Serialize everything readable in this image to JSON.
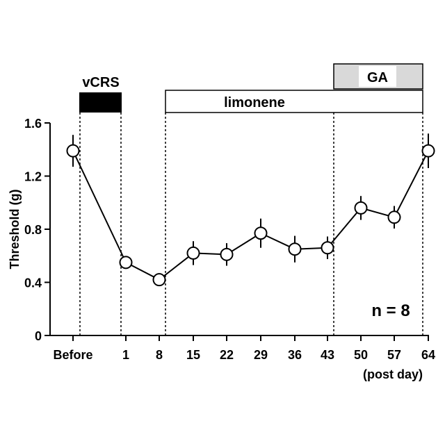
{
  "chart_data": {
    "type": "line",
    "title": "",
    "xlabel": "(post day)",
    "ylabel": "Threshold (g)",
    "ylim": [
      0,
      1.6
    ],
    "yticks": [
      "0",
      "0.4",
      "0.8",
      "1.2",
      "1.6"
    ],
    "categories": [
      "Before",
      "1",
      "8",
      "15",
      "22",
      "29",
      "36",
      "43",
      "50",
      "57",
      "64"
    ],
    "series": [
      {
        "name": "Threshold",
        "values": [
          1.39,
          0.55,
          0.42,
          0.62,
          0.61,
          0.77,
          0.65,
          0.66,
          0.96,
          0.89,
          1.39
        ],
        "errors": [
          0.12,
          0.03,
          0.03,
          0.09,
          0.085,
          0.11,
          0.1,
          0.085,
          0.09,
          0.085,
          0.13
        ]
      }
    ],
    "treatments": [
      {
        "label": "vCRS",
        "style": "filled"
      },
      {
        "label": "limonene",
        "style": "open"
      },
      {
        "label": "GA",
        "style": "gray"
      }
    ],
    "annotation": "n = 8",
    "grid": false,
    "colors": {
      "line": "#000000",
      "marker_fill": "#ffffff",
      "ga_fill": "#d9d9d9"
    }
  }
}
